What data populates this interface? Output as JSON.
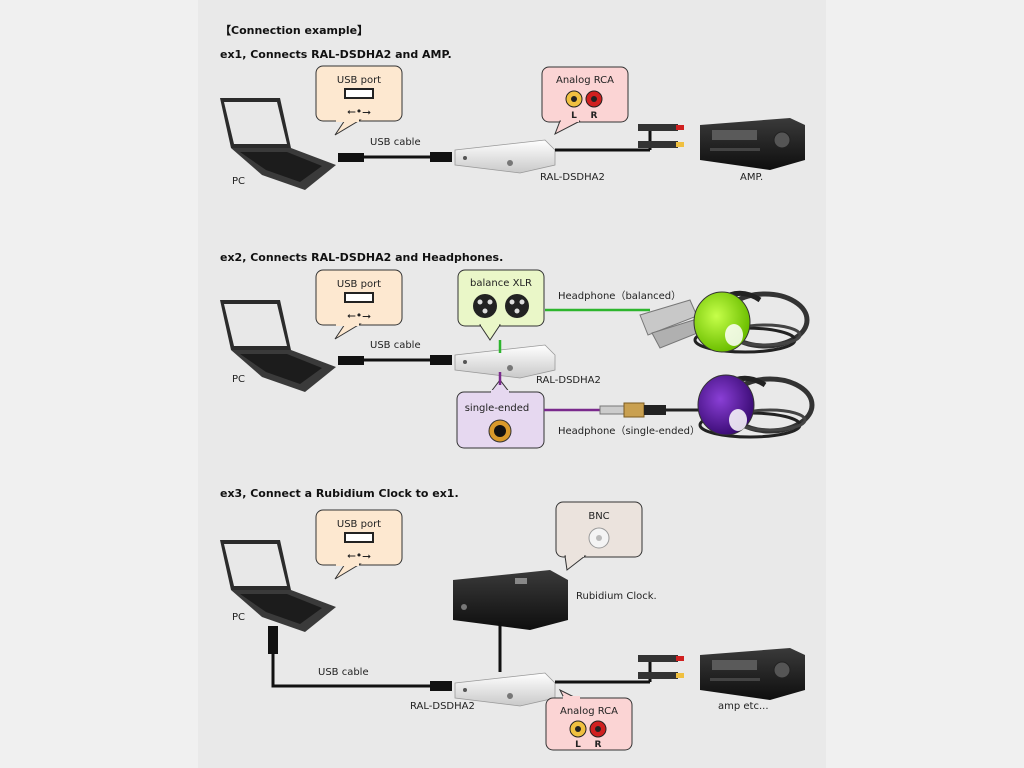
{
  "title": "【Connection example】",
  "sections": [
    {
      "heading": "ex1, Connects RAL-DSDHA2 and AMP.",
      "usb_bubble": "USB port",
      "usb_cable": "USB cable",
      "pc": "PC",
      "device": "RAL-DSDHA2",
      "rca_bubble": "Analog RCA",
      "rca_left": "L",
      "rca_right": "R",
      "amp": "AMP."
    },
    {
      "heading": "ex2, Connects RAL-DSDHA2 and Headphones.",
      "usb_bubble": "USB port",
      "usb_cable": "USB cable",
      "pc": "PC",
      "device": "RAL-DSDHA2",
      "xlr_bubble": "balance XLR",
      "se_bubble": "single-ended",
      "headphone_balanced": "Headphone（balanced）",
      "headphone_single": "Headphone（single-ended）"
    },
    {
      "heading": "ex3, Connect a Rubidium Clock to ex1.",
      "usb_bubble": "USB port",
      "usb_cable": "USB cable",
      "pc": "PC",
      "device": "RAL-DSDHA2",
      "bnc_bubble": "BNC",
      "clock": "Rubidium Clock.",
      "rca_bubble": "Analog RCA",
      "rca_left": "L",
      "rca_right": "R",
      "amp": "amp etc..."
    }
  ],
  "colors": {
    "usb_bubble": "#fde8d0",
    "rca_bubble": "#fbd4d4",
    "xlr_bubble": "#eaf7c8",
    "se_bubble": "#e6d8f0",
    "bnc_bubble": "#ebe3dd",
    "balanced_line": "#2db52d",
    "single_line": "#7a2a8c",
    "headphone_green": "#8fe000",
    "headphone_purple": "#5a189a"
  }
}
